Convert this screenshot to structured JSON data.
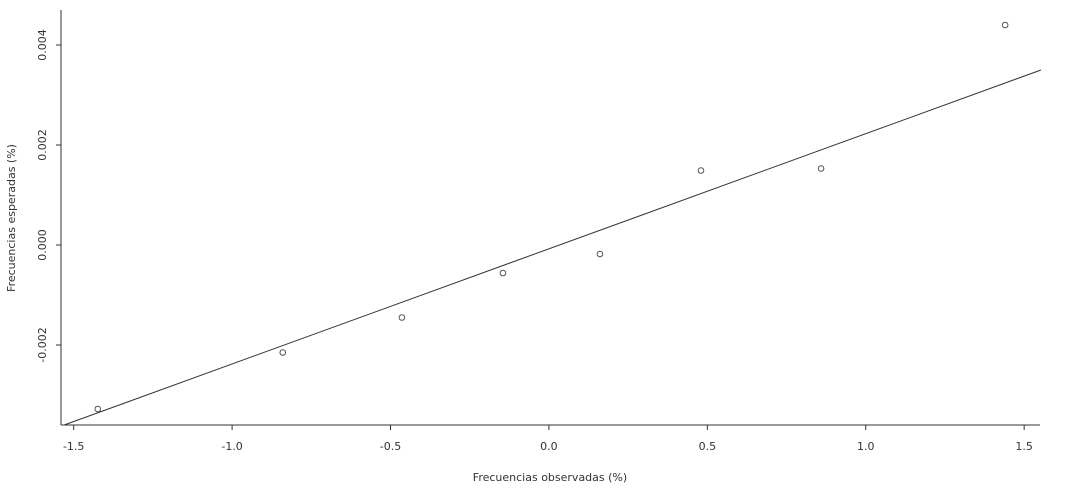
{
  "chart_data": {
    "type": "scatter",
    "x_label": "Frecuencias observadas (%)",
    "y_label": "Frecuencias esperadas (%)",
    "x": [
      -1.424,
      -0.84,
      -0.464,
      -0.145,
      0.161,
      0.48,
      0.859,
      1.44
    ],
    "values": [
      -0.00328,
      -0.00215,
      -0.00145,
      -0.00056,
      -0.00018,
      0.00149,
      0.00153,
      0.0044
    ],
    "color": "#555555",
    "fit_line": {
      "x": [
        -1.53,
        1.553
      ],
      "y": [
        -0.0036,
        0.0035
      ],
      "color": "#333333"
    },
    "xlim": [
      -1.54,
      1.55
    ],
    "ylim": [
      -0.0036,
      0.0047
    ],
    "xticks": [
      -1.5,
      {
        "value": -1.0,
        "label": "-1.0"
      },
      -0.5,
      {
        "value": 0.0,
        "label": "0.0"
      },
      0.5,
      {
        "value": 1.0,
        "label": "1.0"
      },
      1.5
    ],
    "yticks": [
      -0.002,
      {
        "value": 0.0,
        "label": "0.000"
      },
      0.002,
      0.004
    ],
    "grid": false
  }
}
